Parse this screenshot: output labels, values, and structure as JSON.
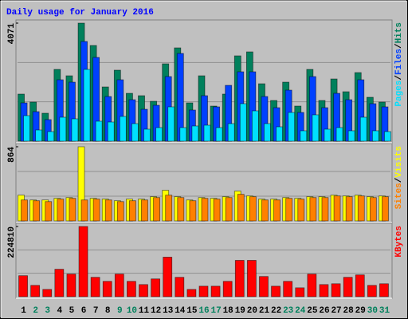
{
  "chart_data": [
    {
      "type": "bar",
      "title": "Daily usage for January 2016",
      "legend_separator": "/",
      "ylim": [
        0,
        4071
      ],
      "yticks": [
        4071
      ],
      "series": [
        {
          "name": "Hits",
          "color": "#00805c",
          "values": [
            1623,
            1348,
            963,
            2475,
            2255,
            4071,
            3300,
            1870,
            2448,
            1650,
            1568,
            1375,
            2668,
            3218,
            1320,
            2255,
            1210,
            1623,
            2943,
            3080,
            1980,
            1403,
            2035,
            1210,
            2475,
            1403,
            2145,
            1705,
            2365,
            1513,
            1348
          ]
        },
        {
          "name": "Files",
          "color": "#0040ff",
          "values": [
            1320,
            1018,
            743,
            2118,
            2035,
            3438,
            2888,
            1540,
            2118,
            1430,
            1100,
            1238,
            2228,
            3025,
            1073,
            1568,
            1183,
            1925,
            2393,
            2393,
            1540,
            1155,
            1760,
            990,
            2228,
            1155,
            1650,
            1430,
            2118,
            1293,
            1183
          ]
        },
        {
          "name": "Pages",
          "color": "#00e0ff",
          "values": [
            880,
            385,
            330,
            825,
            770,
            2475,
            688,
            660,
            853,
            605,
            413,
            468,
            1183,
            468,
            523,
            550,
            468,
            605,
            1293,
            1045,
            605,
            495,
            990,
            358,
            908,
            413,
            468,
            358,
            825,
            358,
            330
          ]
        }
      ]
    },
    {
      "type": "bar",
      "legend_separator": "/",
      "ylim": [
        0,
        864
      ],
      "yticks": [
        864
      ],
      "series": [
        {
          "name": "Visits",
          "color": "#ffff00",
          "values": [
            300,
            244,
            244,
            263,
            272,
            864,
            263,
            254,
            235,
            254,
            254,
            282,
            357,
            282,
            244,
            272,
            263,
            282,
            347,
            291,
            254,
            254,
            272,
            263,
            282,
            282,
            300,
            291,
            300,
            282,
            291
          ]
        },
        {
          "name": "Sites",
          "color": "#ff8000",
          "values": [
            244,
            235,
            225,
            254,
            263,
            244,
            254,
            244,
            225,
            235,
            244,
            272,
            300,
            272,
            235,
            263,
            254,
            272,
            310,
            282,
            244,
            244,
            263,
            254,
            272,
            272,
            291,
            282,
            291,
            272,
            282
          ]
        }
      ]
    },
    {
      "type": "bar",
      "ylim": [
        0,
        224810
      ],
      "yticks": [
        224810
      ],
      "categories": [
        "1",
        "2",
        "3",
        "4",
        "5",
        "6",
        "7",
        "8",
        "9",
        "10",
        "11",
        "12",
        "13",
        "14",
        "15",
        "16",
        "17",
        "18",
        "19",
        "20",
        "21",
        "22",
        "23",
        "24",
        "25",
        "26",
        "27",
        "28",
        "29",
        "30",
        "31"
      ],
      "category_colors": [
        "#000000",
        "#00805c",
        "#00805c",
        "#000000",
        "#000000",
        "#000000",
        "#000000",
        "#000000",
        "#00805c",
        "#00805c",
        "#000000",
        "#000000",
        "#000000",
        "#000000",
        "#000000",
        "#00805c",
        "#00805c",
        "#000000",
        "#000000",
        "#000000",
        "#000000",
        "#000000",
        "#00805c",
        "#00805c",
        "#000000",
        "#000000",
        "#000000",
        "#000000",
        "#000000",
        "#00805c",
        "#00805c"
      ],
      "series": [
        {
          "name": "KBytes",
          "color": "#ff0000",
          "values": [
            67190,
            36180,
            23260,
            87860,
            72350,
            224810,
            62020,
            49100,
            72350,
            49100,
            38760,
            56850,
            126620,
            62020,
            23260,
            33590,
            33590,
            49100,
            116280,
            116280,
            64600,
            33590,
            49100,
            28420,
            72350,
            38760,
            41340,
            62020,
            69770,
            36180,
            41340
          ]
        }
      ]
    }
  ]
}
